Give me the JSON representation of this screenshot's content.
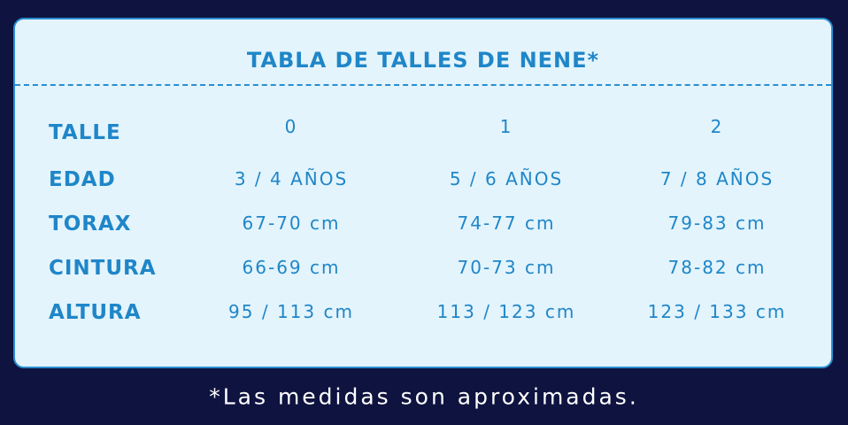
{
  "title": "TABLA DE TALLES DE NENE*",
  "rows": [
    {
      "label": "TALLE",
      "values": [
        "0",
        "1",
        "2"
      ]
    },
    {
      "label": "EDAD",
      "values": [
        "3 / 4 AÑOS",
        "5 / 6 AÑOS",
        "7 / 8 AÑOS"
      ]
    },
    {
      "label": "TORAX",
      "values": [
        "67-70 cm",
        "74-77 cm",
        "79-83 cm"
      ]
    },
    {
      "label": "CINTURA",
      "values": [
        "66-69 cm",
        "70-73 cm",
        "78-82 cm"
      ]
    },
    {
      "label": "ALTURA",
      "values": [
        "95 / 113 cm",
        "113 / 123 cm",
        "123 / 133 cm"
      ]
    }
  ],
  "footnote": "*Las medidas son aproximadas.",
  "colors": {
    "background": "#0f1340",
    "card": "#e3f4fc",
    "accent": "#1f86c8"
  }
}
